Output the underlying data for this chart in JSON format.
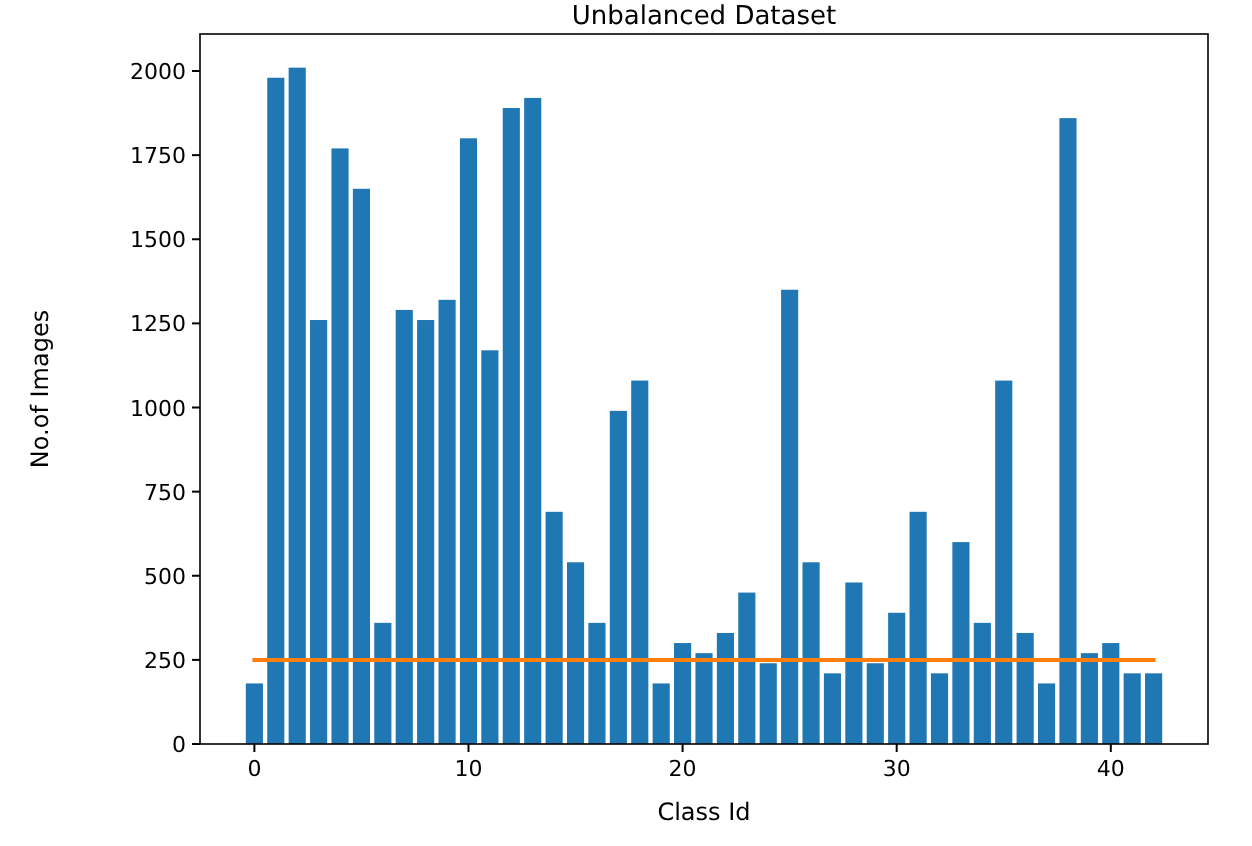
{
  "chart_data": {
    "type": "bar",
    "title": "Unbalanced Dataset",
    "xlabel": "Class Id",
    "ylabel": "No.of Images",
    "x": [
      0,
      1,
      2,
      3,
      4,
      5,
      6,
      7,
      8,
      9,
      10,
      11,
      12,
      13,
      14,
      15,
      16,
      17,
      18,
      19,
      20,
      21,
      22,
      23,
      24,
      25,
      26,
      27,
      28,
      29,
      30,
      31,
      32,
      33,
      34,
      35,
      36,
      37,
      38,
      39,
      40,
      41,
      42
    ],
    "series": [
      {
        "color": "#1f77b4",
        "values": [
          180,
          1980,
          2010,
          1260,
          1770,
          1650,
          360,
          1290,
          1260,
          1320,
          1800,
          1170,
          1890,
          1920,
          690,
          540,
          360,
          990,
          1080,
          180,
          300,
          270,
          330,
          450,
          240,
          1350,
          540,
          210,
          480,
          240,
          390,
          690,
          210,
          600,
          360,
          1080,
          330,
          180,
          1860,
          270,
          300,
          210,
          210
        ]
      },
      {
        "type": "line",
        "color": "#ff7f0e",
        "x": [
          0,
          42
        ],
        "values": [
          250,
          250
        ]
      }
    ],
    "xlim": [
      -2.54,
      44.54
    ],
    "xticks": [
      0,
      10,
      20,
      30,
      40
    ],
    "ylim": [
      0,
      2110
    ],
    "yticks": [
      0,
      250,
      500,
      750,
      1000,
      1250,
      1500,
      1750,
      2000
    ]
  }
}
